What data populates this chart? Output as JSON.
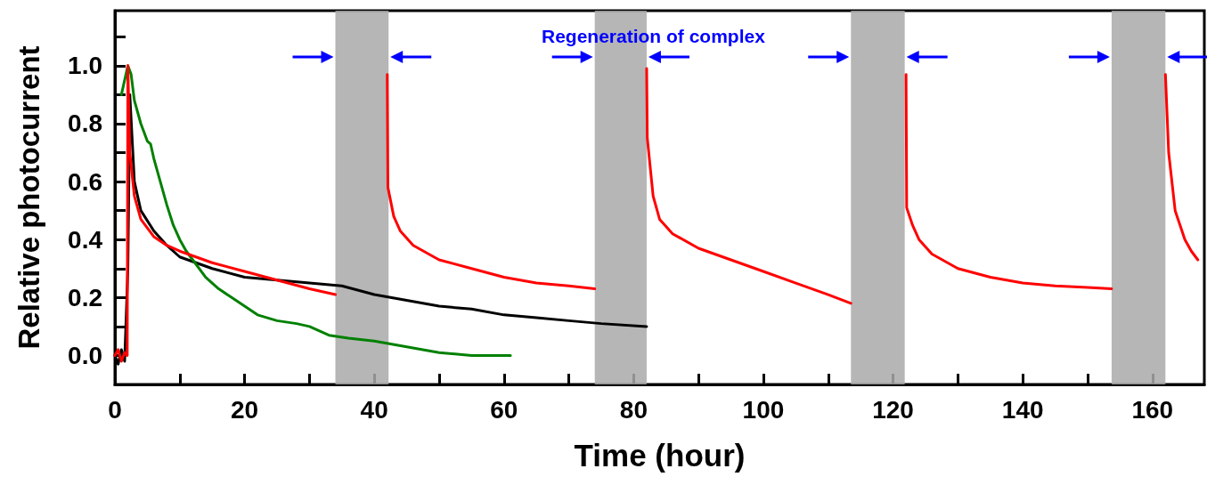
{
  "chart_data": {
    "type": "line",
    "xlabel": "Time (hour)",
    "ylabel": "Relative photocurrent",
    "annotations": [
      "Regeneration of complex"
    ],
    "xlim": [
      0,
      168
    ],
    "ylim": [
      -0.1,
      1.19
    ],
    "xticks": [
      0,
      {
        "value": 10,
        "label": null
      },
      20,
      {
        "value": 30,
        "label": null
      },
      40,
      {
        "value": 50,
        "label": null
      },
      60,
      {
        "value": 70,
        "label": null
      },
      80,
      {
        "value": 90,
        "label": null
      },
      100,
      {
        "value": 110,
        "label": null
      },
      120,
      {
        "value": 130,
        "label": null
      },
      140,
      {
        "value": 150,
        "label": null
      },
      160
    ],
    "yticks": [
      {
        "value": 0,
        "label": "0.0"
      },
      {
        "value": 0.1,
        "label": null
      },
      {
        "value": 0.2,
        "label": "0.2"
      },
      {
        "value": 0.3,
        "label": null
      },
      {
        "value": 0.4,
        "label": "0.4"
      },
      {
        "value": 0.5,
        "label": null
      },
      {
        "value": 0.6,
        "label": "0.6"
      },
      {
        "value": 0.7,
        "label": null
      },
      {
        "value": 0.8,
        "label": "0.8"
      },
      {
        "value": 0.9,
        "label": null
      },
      {
        "value": 1.0,
        "label": "1.0"
      },
      {
        "value": 1.1,
        "label": null
      }
    ],
    "marker": "none",
    "line_style": "solid",
    "bands": [
      {
        "axis": "x",
        "from": 34,
        "to": 42.2,
        "color": "#a9a9a9"
      },
      {
        "axis": "x",
        "from": 74,
        "to": 82,
        "color": "#a9a9a9"
      },
      {
        "axis": "x",
        "from": 113.5,
        "to": 121.8,
        "color": "#a9a9a9"
      },
      {
        "axis": "x",
        "from": 153.7,
        "to": 162,
        "color": "#a9a9a9"
      }
    ],
    "series": [
      {
        "color": "#000000",
        "x": [
          0,
          0.5,
          1,
          1.5,
          2,
          2.3,
          3,
          4,
          6,
          8,
          10,
          15,
          20,
          25,
          30,
          35,
          40,
          45,
          50,
          55,
          60,
          65,
          70,
          75,
          82
        ],
        "values": [
          0,
          -0.03,
          0.02,
          -0.02,
          0.3,
          0.9,
          0.6,
          0.5,
          0.43,
          0.38,
          0.34,
          0.3,
          0.27,
          0.26,
          0.25,
          0.24,
          0.21,
          0.19,
          0.17,
          0.16,
          0.14,
          0.13,
          0.12,
          0.11,
          0.1
        ]
      },
      {
        "color": "#008000",
        "x": [
          1,
          1.5,
          2,
          2.5,
          3,
          4,
          5,
          5.5,
          6,
          7,
          8,
          9,
          10,
          11,
          12,
          14,
          16,
          18,
          20,
          22,
          25,
          28,
          30,
          33,
          36,
          40,
          45,
          50,
          55,
          61
        ],
        "values": [
          0.9,
          0.95,
          1.0,
          0.97,
          0.88,
          0.8,
          0.74,
          0.73,
          0.68,
          0.6,
          0.52,
          0.45,
          0.4,
          0.36,
          0.33,
          0.27,
          0.23,
          0.2,
          0.17,
          0.14,
          0.12,
          0.11,
          0.1,
          0.07,
          0.06,
          0.05,
          0.03,
          0.01,
          0,
          0
        ]
      },
      {
        "color": "#ff0000",
        "x": [
          0,
          0.5,
          1,
          1.5,
          1.9,
          2,
          2.3,
          3,
          4,
          6,
          8,
          10,
          15,
          20,
          25,
          30,
          34,
          38,
          42,
          42.1,
          43,
          44,
          46,
          50,
          55,
          60,
          65,
          70,
          74,
          78,
          82,
          82.1,
          83,
          84,
          86,
          90,
          95,
          100,
          105,
          110,
          113.5,
          118,
          122,
          122.1,
          123,
          124,
          126,
          130,
          135,
          140,
          145,
          150,
          153.7,
          158,
          162,
          162.5,
          163.5,
          165,
          166,
          167
        ],
        "values": [
          0,
          0.02,
          -0.02,
          0.01,
          0,
          1.0,
          0.7,
          0.55,
          0.47,
          0.41,
          0.38,
          0.36,
          0.32,
          0.29,
          0.26,
          0.23,
          0.21,
          null,
          0.97,
          0.58,
          0.48,
          0.43,
          0.38,
          0.33,
          0.3,
          0.27,
          0.25,
          0.24,
          0.23,
          null,
          0.99,
          0.75,
          0.55,
          0.47,
          0.42,
          0.37,
          0.33,
          0.29,
          0.25,
          0.21,
          0.18,
          null,
          0.97,
          0.51,
          0.45,
          0.4,
          0.35,
          0.3,
          0.27,
          0.25,
          0.24,
          0.235,
          0.23,
          null,
          0.97,
          0.7,
          0.5,
          0.4,
          0.36,
          0.33
        ]
      }
    ]
  }
}
